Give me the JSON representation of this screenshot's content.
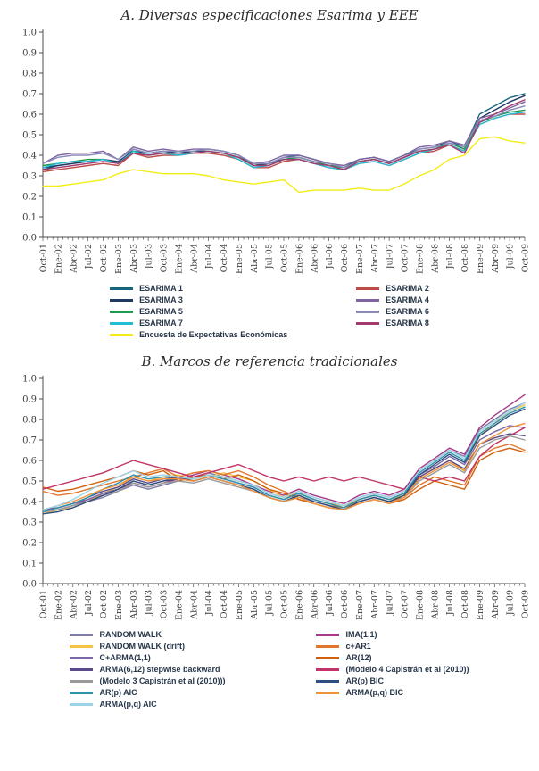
{
  "page": {
    "background": "#ffffff"
  },
  "chart_data": [
    {
      "id": "a",
      "type": "line",
      "title": "A. Diversas especificaciones Esarima y EEE",
      "xlabel": "",
      "ylabel": "",
      "ylim": [
        0.0,
        1.0
      ],
      "ytick_step": 0.1,
      "grid": false,
      "legend_position": "bottom",
      "legend_columns": 2,
      "categories": [
        "Oct-01",
        "Ene-02",
        "Abr-02",
        "Jul-02",
        "Oct-02",
        "Ene-03",
        "Abr-03",
        "Jul-03",
        "Oct-03",
        "Ene-04",
        "Abr-04",
        "Jul-04",
        "Oct-04",
        "Ene-05",
        "Abr-05",
        "Jul-05",
        "Oct-05",
        "Ene-06",
        "Abr-06",
        "Jul-06",
        "Oct-06",
        "Ene-07",
        "Abr-07",
        "Jul-07",
        "Oct-07",
        "Ene-08",
        "Abr-08",
        "Jul-08",
        "Oct-08",
        "Ene-09",
        "Abr-09",
        "Jul-09",
        "Oct-09"
      ],
      "series": [
        {
          "name": "ESARIMA 1",
          "color": "#17657D",
          "values": [
            0.33,
            0.35,
            0.36,
            0.37,
            0.38,
            0.36,
            0.43,
            0.41,
            0.42,
            0.41,
            0.42,
            0.43,
            0.42,
            0.4,
            0.35,
            0.36,
            0.39,
            0.4,
            0.38,
            0.36,
            0.34,
            0.38,
            0.39,
            0.37,
            0.4,
            0.43,
            0.44,
            0.47,
            0.44,
            0.6,
            0.64,
            0.68,
            0.7
          ]
        },
        {
          "name": "ESARIMA 2",
          "color": "#BE4B48",
          "values": [
            0.32,
            0.33,
            0.34,
            0.35,
            0.36,
            0.35,
            0.41,
            0.39,
            0.4,
            0.4,
            0.41,
            0.41,
            0.4,
            0.38,
            0.34,
            0.34,
            0.37,
            0.38,
            0.36,
            0.34,
            0.33,
            0.36,
            0.37,
            0.35,
            0.38,
            0.41,
            0.42,
            0.45,
            0.42,
            0.55,
            0.58,
            0.6,
            0.6
          ]
        },
        {
          "name": "ESARIMA 3",
          "color": "#1F3864",
          "values": [
            0.34,
            0.35,
            0.36,
            0.37,
            0.38,
            0.37,
            0.42,
            0.41,
            0.42,
            0.41,
            0.42,
            0.42,
            0.41,
            0.39,
            0.35,
            0.36,
            0.38,
            0.39,
            0.37,
            0.35,
            0.34,
            0.37,
            0.38,
            0.36,
            0.39,
            0.42,
            0.43,
            0.46,
            0.43,
            0.58,
            0.62,
            0.66,
            0.69
          ]
        },
        {
          "name": "ESARIMA 4",
          "color": "#8064A2",
          "values": [
            0.36,
            0.4,
            0.41,
            0.41,
            0.42,
            0.38,
            0.44,
            0.42,
            0.43,
            0.42,
            0.43,
            0.43,
            0.42,
            0.4,
            0.36,
            0.37,
            0.4,
            0.4,
            0.38,
            0.36,
            0.35,
            0.38,
            0.39,
            0.37,
            0.4,
            0.44,
            0.45,
            0.47,
            0.45,
            0.58,
            0.6,
            0.63,
            0.66
          ]
        },
        {
          "name": "ESARIMA 5",
          "color": "#1E9A50",
          "values": [
            0.35,
            0.36,
            0.37,
            0.38,
            0.38,
            0.36,
            0.42,
            0.4,
            0.41,
            0.41,
            0.41,
            0.42,
            0.41,
            0.39,
            0.35,
            0.35,
            0.38,
            0.39,
            0.37,
            0.35,
            0.34,
            0.37,
            0.38,
            0.36,
            0.39,
            0.42,
            0.43,
            0.46,
            0.43,
            0.56,
            0.59,
            0.61,
            0.62
          ]
        },
        {
          "name": "ESARIMA 6",
          "color": "#8B89B8",
          "values": [
            0.36,
            0.39,
            0.4,
            0.4,
            0.41,
            0.38,
            0.43,
            0.41,
            0.42,
            0.42,
            0.42,
            0.43,
            0.42,
            0.4,
            0.36,
            0.36,
            0.39,
            0.39,
            0.37,
            0.36,
            0.34,
            0.37,
            0.38,
            0.36,
            0.39,
            0.43,
            0.44,
            0.46,
            0.44,
            0.57,
            0.59,
            0.62,
            0.64
          ]
        },
        {
          "name": "ESARIMA 7",
          "color": "#22BCD4",
          "values": [
            0.34,
            0.36,
            0.37,
            0.37,
            0.38,
            0.36,
            0.42,
            0.4,
            0.41,
            0.4,
            0.41,
            0.42,
            0.41,
            0.38,
            0.34,
            0.35,
            0.38,
            0.38,
            0.36,
            0.34,
            0.33,
            0.36,
            0.37,
            0.35,
            0.38,
            0.41,
            0.43,
            0.45,
            0.42,
            0.55,
            0.58,
            0.6,
            0.61
          ]
        },
        {
          "name": "ESARIMA 8",
          "color": "#A23B6E",
          "values": [
            0.33,
            0.34,
            0.35,
            0.36,
            0.37,
            0.36,
            0.41,
            0.4,
            0.41,
            0.41,
            0.41,
            0.42,
            0.41,
            0.39,
            0.35,
            0.35,
            0.38,
            0.38,
            0.36,
            0.35,
            0.33,
            0.37,
            0.38,
            0.36,
            0.39,
            0.42,
            0.43,
            0.45,
            0.41,
            0.56,
            0.6,
            0.64,
            0.67
          ]
        },
        {
          "name": "Encuesta de Expectativas Económicas",
          "color": "#F3EC15",
          "values": [
            0.25,
            0.25,
            0.26,
            0.27,
            0.28,
            0.31,
            0.33,
            0.32,
            0.31,
            0.31,
            0.31,
            0.3,
            0.28,
            0.27,
            0.26,
            0.27,
            0.28,
            0.22,
            0.23,
            0.23,
            0.23,
            0.24,
            0.23,
            0.23,
            0.26,
            0.3,
            0.33,
            0.38,
            0.4,
            0.48,
            0.49,
            0.47,
            0.46
          ]
        }
      ]
    },
    {
      "id": "b",
      "type": "line",
      "title": "B. Marcos de referencia tradicionales",
      "xlabel": "",
      "ylabel": "",
      "ylim": [
        0.0,
        1.0
      ],
      "ytick_step": 0.1,
      "grid": false,
      "legend_position": "bottom",
      "legend_columns": 2,
      "categories": [
        "Oct-01",
        "Ene-02",
        "Abr-02",
        "Jul-02",
        "Oct-02",
        "Ene-03",
        "Abr-03",
        "Jul-03",
        "Oct-03",
        "Ene-04",
        "Abr-04",
        "Jul-04",
        "Oct-04",
        "Ene-05",
        "Abr-05",
        "Jul-05",
        "Oct-05",
        "Ene-06",
        "Abr-06",
        "Jul-06",
        "Oct-06",
        "Ene-07",
        "Abr-07",
        "Jul-07",
        "Oct-07",
        "Ene-08",
        "Abr-08",
        "Jul-08",
        "Oct-08",
        "Ene-09",
        "Abr-09",
        "Jul-09",
        "Oct-09"
      ],
      "series": [
        {
          "name": "RANDOM WALK",
          "color": "#7D7DA8",
          "values": [
            0.35,
            0.36,
            0.38,
            0.4,
            0.42,
            0.45,
            0.48,
            0.46,
            0.48,
            0.5,
            0.52,
            0.54,
            0.52,
            0.5,
            0.48,
            0.44,
            0.42,
            0.45,
            0.42,
            0.4,
            0.38,
            0.42,
            0.44,
            0.42,
            0.45,
            0.55,
            0.6,
            0.65,
            0.62,
            0.75,
            0.8,
            0.85,
            0.88
          ]
        },
        {
          "name": "IMA(1,1)",
          "color": "#A73A86",
          "values": [
            0.36,
            0.37,
            0.39,
            0.41,
            0.43,
            0.46,
            0.49,
            0.47,
            0.49,
            0.51,
            0.53,
            0.55,
            0.53,
            0.51,
            0.48,
            0.45,
            0.43,
            0.46,
            0.43,
            0.41,
            0.39,
            0.43,
            0.45,
            0.43,
            0.46,
            0.56,
            0.61,
            0.66,
            0.63,
            0.76,
            0.82,
            0.87,
            0.92
          ]
        },
        {
          "name": "RANDOM WALK (drift)",
          "color": "#F5C242",
          "values": [
            0.34,
            0.36,
            0.37,
            0.4,
            0.44,
            0.47,
            0.52,
            0.5,
            0.52,
            0.53,
            0.5,
            0.52,
            0.54,
            0.52,
            0.5,
            0.46,
            0.42,
            0.44,
            0.41,
            0.39,
            0.38,
            0.41,
            0.43,
            0.41,
            0.43,
            0.52,
            0.56,
            0.6,
            0.55,
            0.72,
            0.78,
            0.84,
            0.87
          ]
        },
        {
          "name": "c+AR1",
          "color": "#E2762B",
          "values": [
            0.45,
            0.43,
            0.44,
            0.46,
            0.48,
            0.5,
            0.52,
            0.54,
            0.56,
            0.52,
            0.54,
            0.55,
            0.53,
            0.55,
            0.52,
            0.48,
            0.45,
            0.42,
            0.4,
            0.38,
            0.37,
            0.4,
            0.42,
            0.4,
            0.42,
            0.48,
            0.52,
            0.5,
            0.48,
            0.62,
            0.66,
            0.68,
            0.65
          ]
        },
        {
          "name": "C+ARMA(1,1)",
          "color": "#7B68A8",
          "values": [
            0.35,
            0.36,
            0.38,
            0.41,
            0.44,
            0.46,
            0.5,
            0.48,
            0.5,
            0.52,
            0.51,
            0.53,
            0.51,
            0.49,
            0.47,
            0.43,
            0.41,
            0.44,
            0.41,
            0.39,
            0.37,
            0.41,
            0.43,
            0.41,
            0.44,
            0.53,
            0.57,
            0.62,
            0.58,
            0.7,
            0.74,
            0.77,
            0.76
          ]
        },
        {
          "name": "AR(12)",
          "color": "#D2600A",
          "values": [
            0.47,
            0.45,
            0.46,
            0.48,
            0.5,
            0.52,
            0.55,
            0.53,
            0.55,
            0.5,
            0.52,
            0.53,
            0.51,
            0.53,
            0.5,
            0.46,
            0.44,
            0.41,
            0.39,
            0.37,
            0.36,
            0.39,
            0.41,
            0.39,
            0.41,
            0.46,
            0.5,
            0.48,
            0.46,
            0.6,
            0.64,
            0.66,
            0.64
          ]
        },
        {
          "name": "ARMA(6,12) stepwise backward",
          "color": "#5A4A8A",
          "values": [
            0.36,
            0.37,
            0.39,
            0.42,
            0.45,
            0.47,
            0.51,
            0.49,
            0.51,
            0.52,
            0.5,
            0.52,
            0.5,
            0.48,
            0.46,
            0.42,
            0.4,
            0.43,
            0.4,
            0.38,
            0.36,
            0.4,
            0.42,
            0.4,
            0.43,
            0.52,
            0.56,
            0.6,
            0.56,
            0.68,
            0.71,
            0.73,
            0.72
          ]
        },
        {
          "name": "(Modelo 4 Capistrán et al (2010))",
          "color": "#C13366",
          "values": [
            0.46,
            0.48,
            0.5,
            0.52,
            0.54,
            0.57,
            0.6,
            0.58,
            0.56,
            0.54,
            0.52,
            0.54,
            0.56,
            0.58,
            0.55,
            0.52,
            0.5,
            0.52,
            0.5,
            0.52,
            0.5,
            0.52,
            0.5,
            0.48,
            0.46,
            0.52,
            0.5,
            0.52,
            0.5,
            0.62,
            0.68,
            0.72,
            0.76
          ]
        },
        {
          "name": "(Modelo 3 Capistrán et al (2010)))",
          "color": "#9A9A9A",
          "values": [
            0.35,
            0.36,
            0.38,
            0.4,
            0.43,
            0.45,
            0.49,
            0.47,
            0.49,
            0.5,
            0.49,
            0.51,
            0.49,
            0.47,
            0.45,
            0.42,
            0.4,
            0.42,
            0.4,
            0.38,
            0.36,
            0.39,
            0.41,
            0.39,
            0.42,
            0.5,
            0.54,
            0.58,
            0.54,
            0.66,
            0.7,
            0.72,
            0.7
          ]
        },
        {
          "name": "AR(p) BIC",
          "color": "#2D4E7E",
          "values": [
            0.34,
            0.35,
            0.37,
            0.4,
            0.43,
            0.46,
            0.5,
            0.48,
            0.5,
            0.51,
            0.5,
            0.52,
            0.5,
            0.48,
            0.46,
            0.42,
            0.4,
            0.43,
            0.4,
            0.38,
            0.36,
            0.4,
            0.42,
            0.4,
            0.43,
            0.53,
            0.58,
            0.63,
            0.59,
            0.72,
            0.77,
            0.82,
            0.85
          ]
        },
        {
          "name": "AR(p) AIC",
          "color": "#2E93A8",
          "values": [
            0.35,
            0.37,
            0.39,
            0.42,
            0.46,
            0.49,
            0.53,
            0.51,
            0.52,
            0.52,
            0.51,
            0.53,
            0.51,
            0.49,
            0.47,
            0.43,
            0.41,
            0.44,
            0.41,
            0.39,
            0.37,
            0.41,
            0.43,
            0.41,
            0.44,
            0.54,
            0.59,
            0.64,
            0.6,
            0.73,
            0.78,
            0.83,
            0.86
          ]
        },
        {
          "name": "ARMA(p,q) BIC",
          "color": "#F0923C",
          "values": [
            0.36,
            0.38,
            0.4,
            0.43,
            0.46,
            0.48,
            0.52,
            0.5,
            0.51,
            0.51,
            0.5,
            0.52,
            0.5,
            0.48,
            0.45,
            0.42,
            0.4,
            0.42,
            0.39,
            0.37,
            0.36,
            0.39,
            0.41,
            0.39,
            0.42,
            0.51,
            0.55,
            0.59,
            0.55,
            0.68,
            0.72,
            0.76,
            0.78
          ]
        },
        {
          "name": "ARMA(p,q) AIC",
          "color": "#9CD3E8",
          "values": [
            0.36,
            0.38,
            0.41,
            0.45,
            0.49,
            0.52,
            0.55,
            0.52,
            0.53,
            0.52,
            0.51,
            0.53,
            0.52,
            0.5,
            0.48,
            0.44,
            0.42,
            0.45,
            0.42,
            0.4,
            0.38,
            0.42,
            0.44,
            0.42,
            0.45,
            0.55,
            0.6,
            0.65,
            0.61,
            0.74,
            0.79,
            0.84,
            0.88
          ]
        }
      ]
    }
  ]
}
